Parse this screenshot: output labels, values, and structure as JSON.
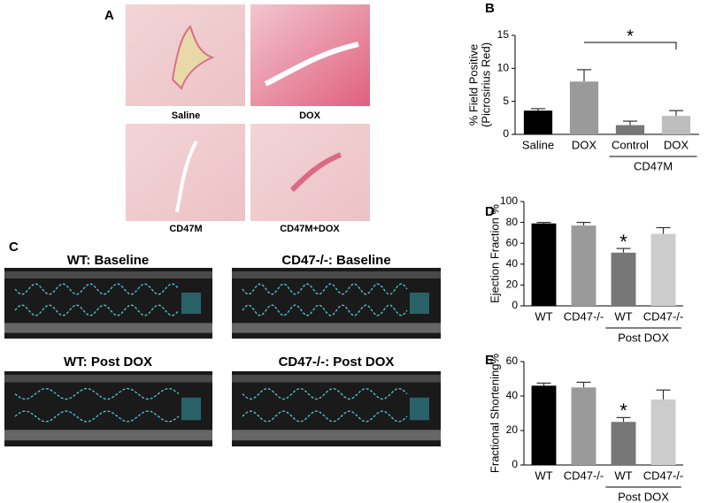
{
  "histology": {
    "label": "A",
    "captions": [
      "Saline",
      "DOX",
      "CD47M",
      "CD47M+DOX"
    ]
  },
  "echo": {
    "label": "C",
    "captions": [
      "WT: Baseline",
      "CD47-/-: Baseline",
      "WT: Post DOX",
      "CD47-/-: Post DOX"
    ]
  },
  "chart_data": [
    {
      "type": "bar",
      "label": "B",
      "ylabel": [
        "% Field Positive",
        "(Picrosirius Red)"
      ],
      "categories": [
        "Saline",
        "DOX",
        "Control",
        "DOX"
      ],
      "group_label": "CD47M",
      "values": [
        3.6,
        8.0,
        1.4,
        2.8
      ],
      "errors": [
        0.3,
        1.8,
        0.6,
        0.8
      ],
      "colors": [
        "#000000",
        "#9a9a9a",
        "#777777",
        "#bdbdbd"
      ],
      "ylim": [
        0,
        15
      ],
      "yticks": [
        0,
        5,
        10,
        15
      ],
      "annotation": "*"
    },
    {
      "type": "bar",
      "label": "D",
      "ylabel": [
        "Ejection  Fraction %"
      ],
      "categories": [
        "WT",
        "CD47-/-",
        "WT",
        "CD47-/-"
      ],
      "group_label": "Post DOX",
      "values": [
        79,
        77,
        51,
        69
      ],
      "errors": [
        1,
        3,
        4,
        6
      ],
      "colors": [
        "#000000",
        "#9a9a9a",
        "#777777",
        "#cccccc"
      ],
      "ylim": [
        0,
        100
      ],
      "yticks": [
        0,
        20,
        40,
        60,
        80,
        100
      ],
      "annotation": "*"
    },
    {
      "type": "bar",
      "label": "E",
      "ylabel": [
        "Fractional Shortening%"
      ],
      "categories": [
        "WT",
        "CD47-/-",
        "WT",
        "CD47-/-"
      ],
      "group_label": "Post DOX",
      "values": [
        46,
        45,
        25,
        38
      ],
      "errors": [
        1.5,
        3,
        2.5,
        5.5
      ],
      "colors": [
        "#000000",
        "#9a9a9a",
        "#777777",
        "#cccccc"
      ],
      "ylim": [
        0,
        60
      ],
      "yticks": [
        0,
        20,
        40,
        60
      ],
      "annotation": "*"
    }
  ]
}
